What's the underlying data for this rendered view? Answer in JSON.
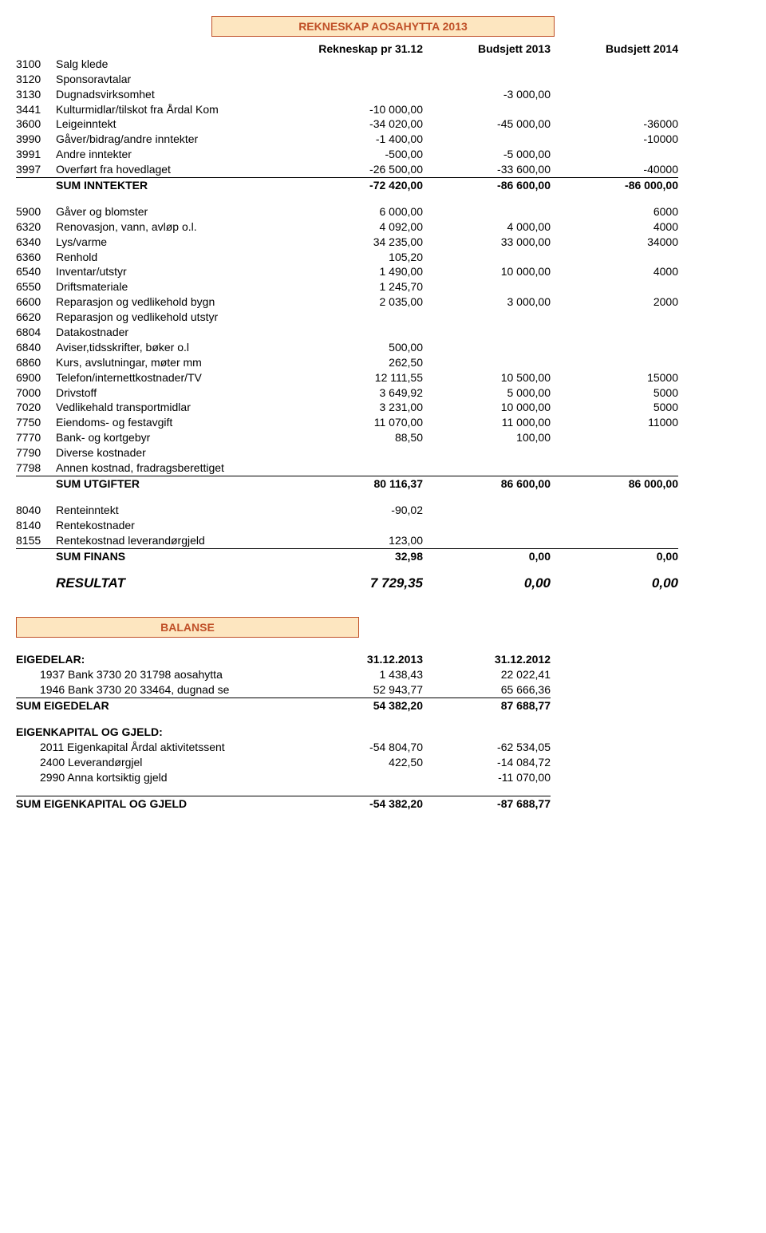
{
  "title": "REKNESKAP AOSAHYTTA 2013",
  "columns": {
    "c1": "Rekneskap pr 31.12",
    "c2": "Budsjett 2013",
    "c3": "Budsjett 2014"
  },
  "income_rows": [
    {
      "code": "3100",
      "desc": "Salg klede",
      "v1": "",
      "v2": "",
      "v3": ""
    },
    {
      "code": "3120",
      "desc": "Sponsoravtalar",
      "v1": "",
      "v2": "",
      "v3": ""
    },
    {
      "code": "3130",
      "desc": "Dugnadsvirksomhet",
      "v1": "",
      "v2": "-3 000,00",
      "v3": ""
    },
    {
      "code": "3441",
      "desc": "Kulturmidlar/tilskot fra Årdal Kom",
      "v1": "-10 000,00",
      "v2": "",
      "v3": ""
    },
    {
      "code": "3600",
      "desc": "Leigeinntekt",
      "v1": "-34 020,00",
      "v2": "-45 000,00",
      "v3": "-36000"
    },
    {
      "code": "3990",
      "desc": "Gåver/bidrag/andre inntekter",
      "v1": "-1 400,00",
      "v2": "",
      "v3": "-10000"
    },
    {
      "code": "3991",
      "desc": "Andre inntekter",
      "v1": "-500,00",
      "v2": "-5 000,00",
      "v3": ""
    },
    {
      "code": "3997",
      "desc": "Overført fra hovedlaget",
      "v1": "-26 500,00",
      "v2": "-33 600,00",
      "v3": "-40000"
    }
  ],
  "sum_inntekter": {
    "label": "SUM INNTEKTER",
    "v1": "-72 420,00",
    "v2": "-86 600,00",
    "v3": "-86 000,00"
  },
  "expense_rows": [
    {
      "code": "5900",
      "desc": "Gåver og blomster",
      "v1": "6 000,00",
      "v2": "",
      "v3": "6000"
    },
    {
      "code": "6320",
      "desc": "Renovasjon, vann, avløp o.l.",
      "v1": "4 092,00",
      "v2": "4 000,00",
      "v3": "4000"
    },
    {
      "code": "6340",
      "desc": "Lys/varme",
      "v1": "34 235,00",
      "v2": "33 000,00",
      "v3": "34000"
    },
    {
      "code": "6360",
      "desc": "Renhold",
      "v1": "105,20",
      "v2": "",
      "v3": ""
    },
    {
      "code": "6540",
      "desc": "Inventar/utstyr",
      "v1": "1 490,00",
      "v2": "10 000,00",
      "v3": "4000"
    },
    {
      "code": "6550",
      "desc": "Driftsmateriale",
      "v1": "1 245,70",
      "v2": "",
      "v3": ""
    },
    {
      "code": "6600",
      "desc": "Reparasjon og vedlikehold bygn",
      "v1": "2 035,00",
      "v2": "3 000,00",
      "v3": "2000"
    },
    {
      "code": "6620",
      "desc": "Reparasjon og vedlikehold utstyr",
      "v1": "",
      "v2": "",
      "v3": ""
    },
    {
      "code": "6804",
      "desc": "Datakostnader",
      "v1": "",
      "v2": "",
      "v3": ""
    },
    {
      "code": "6840",
      "desc": "Aviser,tidsskrifter, bøker o.l",
      "v1": "500,00",
      "v2": "",
      "v3": ""
    },
    {
      "code": "6860",
      "desc": "Kurs, avslutningar, møter mm",
      "v1": "262,50",
      "v2": "",
      "v3": ""
    },
    {
      "code": "6900",
      "desc": "Telefon/internettkostnader/TV",
      "v1": "12 111,55",
      "v2": "10 500,00",
      "v3": "15000"
    },
    {
      "code": "7000",
      "desc": "Drivstoff",
      "v1": "3 649,92",
      "v2": "5 000,00",
      "v3": "5000"
    },
    {
      "code": "7020",
      "desc": "Vedlikehald transportmidlar",
      "v1": "3 231,00",
      "v2": "10 000,00",
      "v3": "5000"
    },
    {
      "code": "7750",
      "desc": "Eiendoms- og festavgift",
      "v1": "11 070,00",
      "v2": "11 000,00",
      "v3": "11000"
    },
    {
      "code": "7770",
      "desc": "Bank- og kortgebyr",
      "v1": "88,50",
      "v2": "100,00",
      "v3": ""
    },
    {
      "code": "7790",
      "desc": "Diverse kostnader",
      "v1": "",
      "v2": "",
      "v3": ""
    },
    {
      "code": "7798",
      "desc": "Annen kostnad, fradragsberettiget",
      "v1": "",
      "v2": "",
      "v3": ""
    }
  ],
  "sum_utgifter": {
    "label": "SUM UTGIFTER",
    "v1": "80 116,37",
    "v2": "86 600,00",
    "v3": "86 000,00"
  },
  "finans_rows": [
    {
      "code": "8040",
      "desc": "Renteinntekt",
      "v1": "-90,02",
      "v2": "",
      "v3": ""
    },
    {
      "code": "8140",
      "desc": "Rentekostnader",
      "v1": "",
      "v2": "",
      "v3": ""
    },
    {
      "code": "8155",
      "desc": "Rentekostnad leverandørgjeld",
      "v1": "123,00",
      "v2": "",
      "v3": ""
    }
  ],
  "sum_finans": {
    "label": "SUM FINANS",
    "v1": "32,98",
    "v2": "0,00",
    "v3": "0,00"
  },
  "resultat": {
    "label": "RESULTAT",
    "v1": "7 729,35",
    "v2": "0,00",
    "v3": "0,00"
  },
  "balanse_title": "BALANSE",
  "eigedelar_label": "EIGEDELAR:",
  "eigedelar_cols": {
    "c1": "31.12.2013",
    "c2": "31.12.2012"
  },
  "eigedelar_rows": [
    {
      "desc": "1937 Bank 3730 20 31798 aosahytta",
      "v1": "1 438,43",
      "v2": "22 022,41"
    },
    {
      "desc": "1946 Bank 3730 20 33464, dugnad se",
      "v1": "52 943,77",
      "v2": "65 666,36"
    }
  ],
  "sum_eigedelar": {
    "label": "SUM EIGEDELAR",
    "v1": "54 382,20",
    "v2": "87 688,77"
  },
  "egk_label": "EIGENKAPITAL OG GJELD:",
  "egk_rows": [
    {
      "desc": "2011 Eigenkapital Årdal aktivitetssent",
      "v1": "-54 804,70",
      "v2": "-62 534,05"
    },
    {
      "desc": "2400 Leverandørgjel",
      "v1": "422,50",
      "v2": "-14 084,72"
    },
    {
      "desc": "2990 Anna kortsiktig gjeld",
      "v1": "",
      "v2": "-11 070,00"
    }
  ],
  "sum_egk": {
    "label": "SUM EIGENKAPITAL OG GJELD",
    "v1": "-54 382,20",
    "v2": "-87 688,77"
  },
  "colors": {
    "box_border": "#c05028",
    "box_bg": "#fde6c0",
    "text": "#000000"
  }
}
